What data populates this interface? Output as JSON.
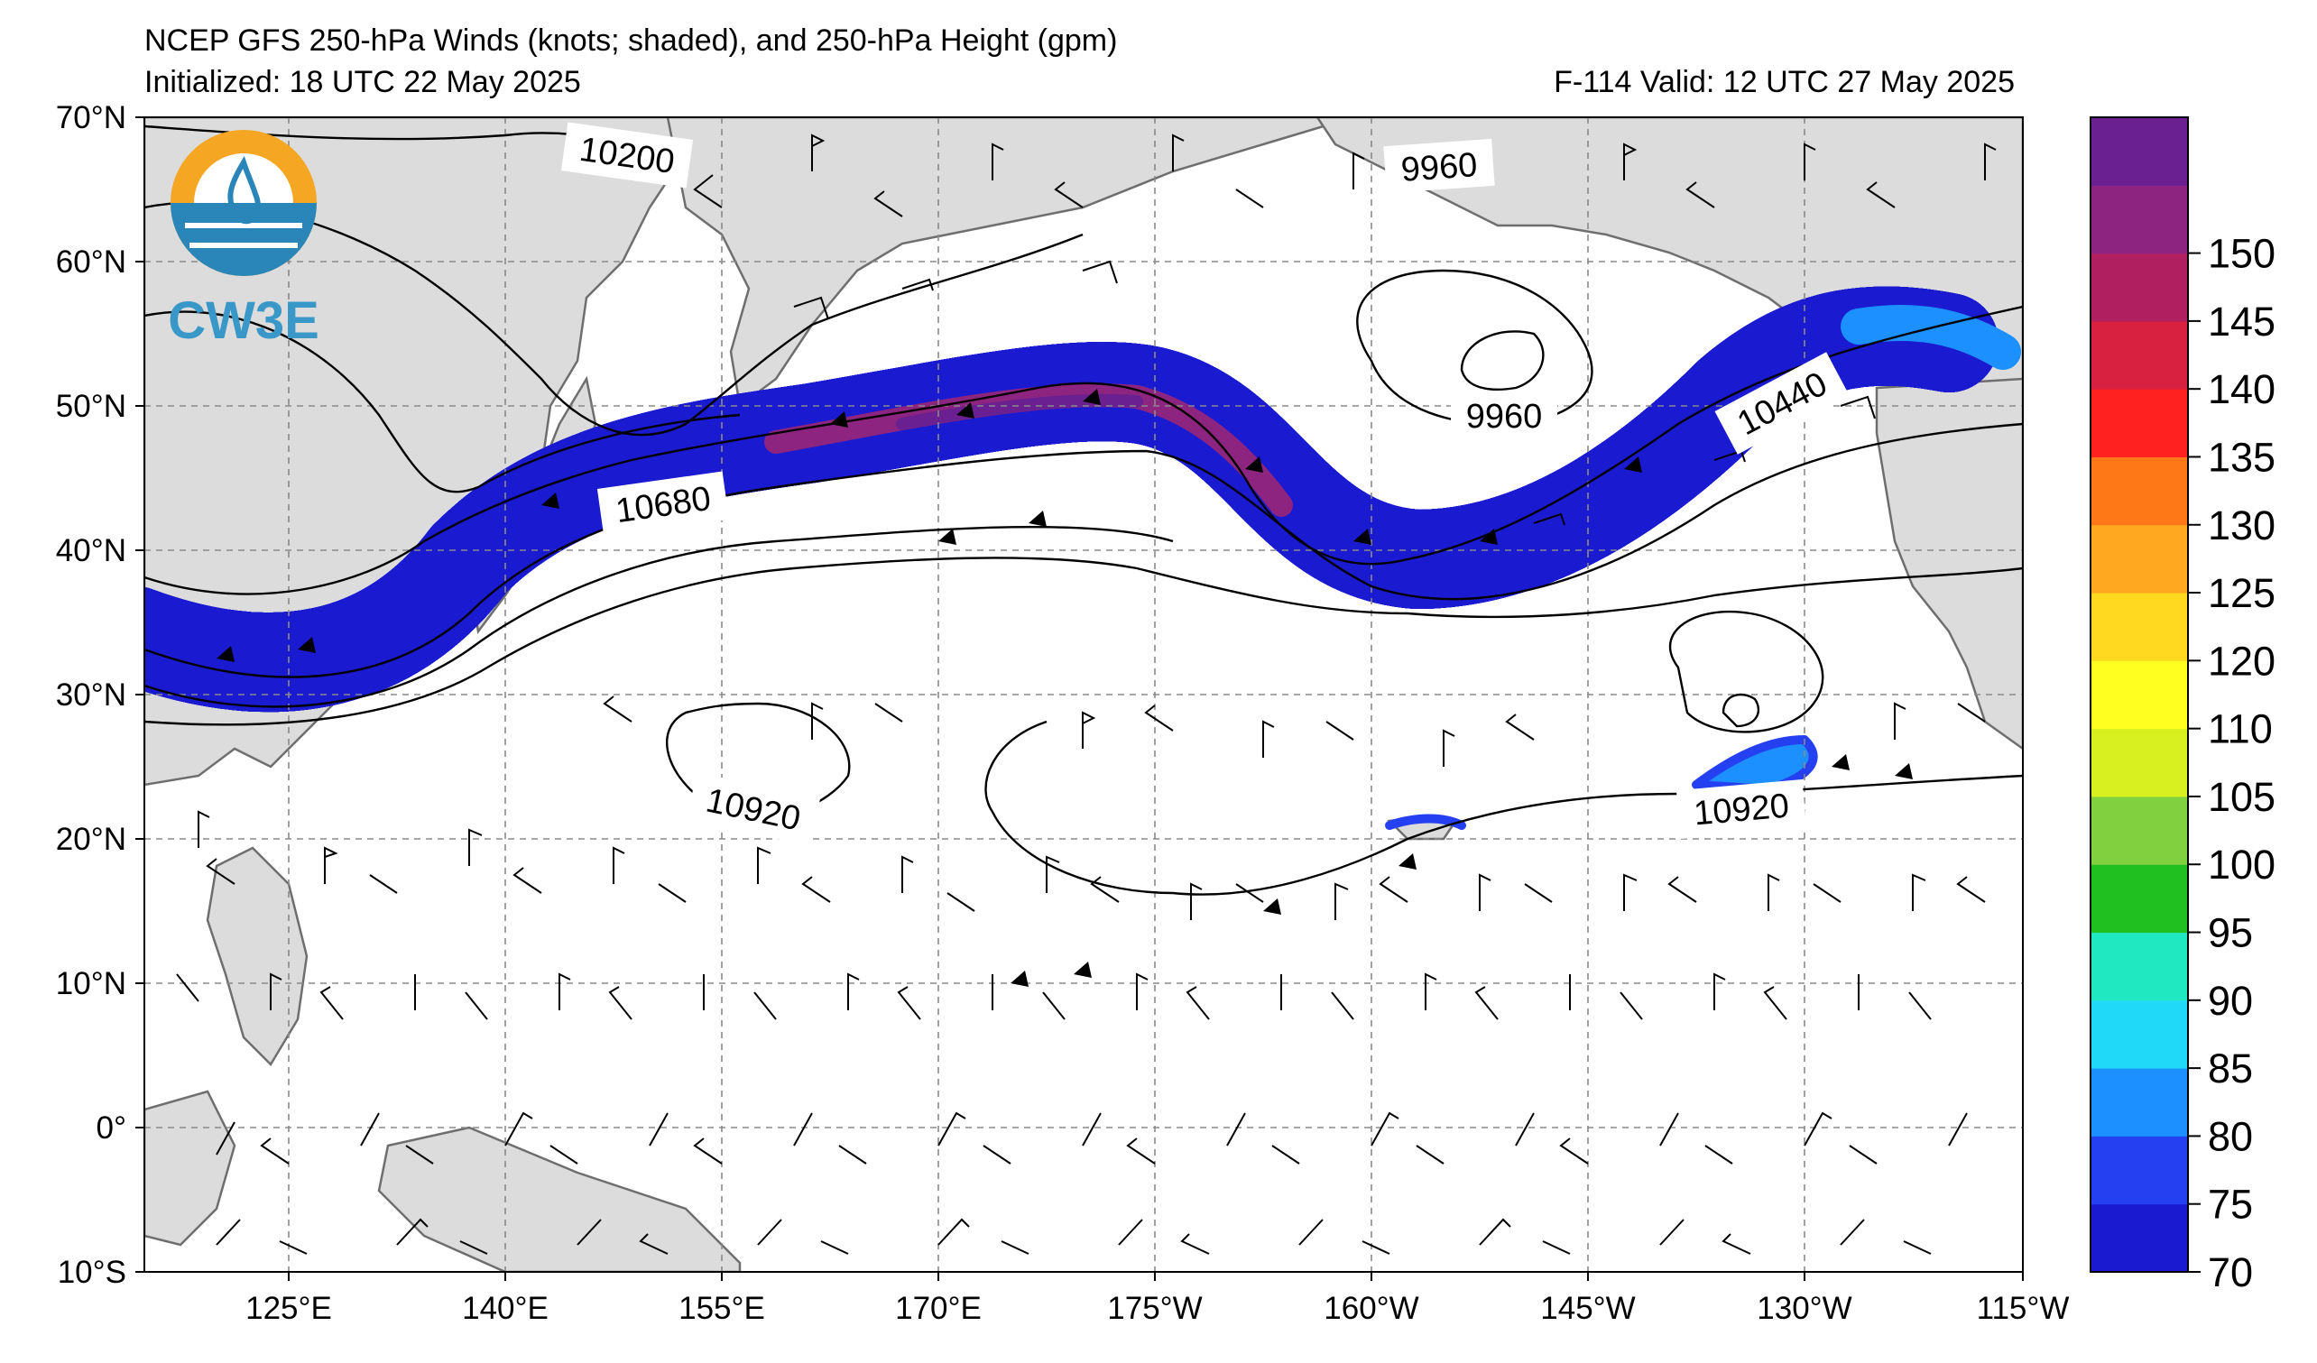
{
  "header": {
    "title": "NCEP GFS 250-hPa Winds (knots; shaded), and 250-hPa Height (gpm)",
    "initialized": "Initialized: 18 UTC 22 May 2025",
    "valid": "F-114  Valid: 12 UTC 27 May 2025"
  },
  "logo": {
    "text": "CW3E",
    "icon": "cw3e-logo-icon"
  },
  "map": {
    "lat_labels": [
      "70°N",
      "60°N",
      "50°N",
      "40°N",
      "30°N",
      "20°N",
      "10°N",
      "0°",
      "10°S"
    ],
    "lon_labels": [
      "125°E",
      "140°E",
      "155°E",
      "170°E",
      "175°W",
      "160°W",
      "145°W",
      "130°W",
      "115°W"
    ],
    "contour_labels": [
      "10200",
      "9960",
      "10680",
      "9960",
      "10440",
      "10920",
      "10920"
    ],
    "lat_range": [
      -10,
      70
    ],
    "lon_range_deg_east": [
      112,
      245
    ]
  },
  "colorbar": {
    "ticks": [
      "70",
      "75",
      "80",
      "85",
      "90",
      "95",
      "100",
      "105",
      "110",
      "120",
      "125",
      "130",
      "135",
      "140",
      "145",
      "150"
    ],
    "colors": [
      "#1a1ad0",
      "#2440f0",
      "#1c90ff",
      "#20d8f8",
      "#20e8c0",
      "#20c020",
      "#80d040",
      "#d8f020",
      "#ffff20",
      "#ffd820",
      "#ffa820",
      "#ff7818",
      "#ff2020",
      "#d82040",
      "#b02060",
      "#8c2480",
      "#6a2090"
    ]
  }
}
